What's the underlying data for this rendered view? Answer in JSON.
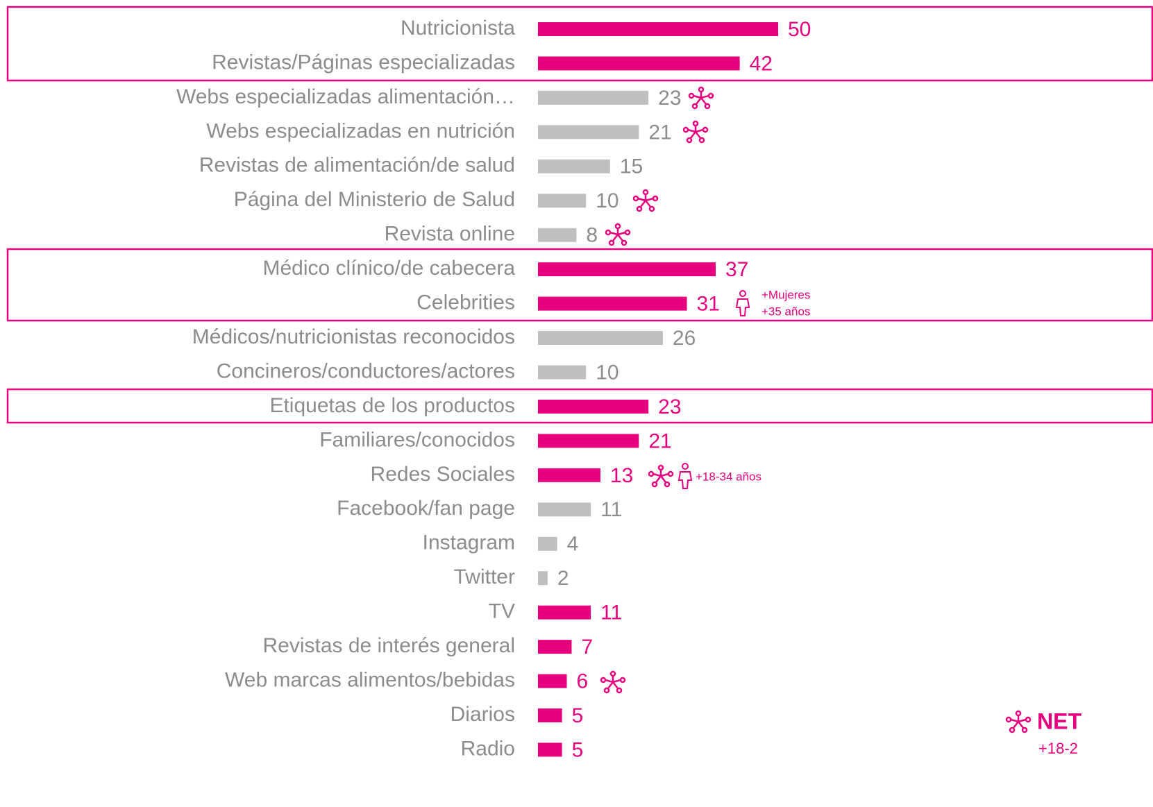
{
  "chart_data": {
    "type": "barh",
    "categories": [
      "Nutricionista",
      "Revistas/Páginas especializadas",
      "Webs especializadas alimentación…",
      "Webs especializadas en nutrición",
      "Revistas de alimentación/de salud",
      "Página del Ministerio de Salud",
      "Revista online",
      "Médico clínico/de cabecera",
      "Celebrities",
      "Médicos/nutricionistas reconocidos",
      "Concineros/conductores/actores",
      "Etiquetas de los productos",
      "Familiares/conocidos",
      "Redes Sociales",
      "Facebook/fan page",
      "Instagram",
      "Twitter",
      "TV",
      "Revistas de interés general",
      "Web marcas alimentos/bebidas",
      "Diarios",
      "Radio"
    ],
    "values": [
      50,
      42,
      23,
      21,
      15,
      10,
      8,
      37,
      31,
      26,
      10,
      23,
      21,
      13,
      11,
      4,
      2,
      11,
      7,
      6,
      5,
      5
    ],
    "colors": [
      "#e6007e",
      "#e6007e",
      "#bfbfbf",
      "#bfbfbf",
      "#bfbfbf",
      "#bfbfbf",
      "#bfbfbf",
      "#e6007e",
      "#e6007e",
      "#bfbfbf",
      "#bfbfbf",
      "#e6007e",
      "#e6007e",
      "#e6007e",
      "#bfbfbf",
      "#bfbfbf",
      "#bfbfbf",
      "#e6007e",
      "#e6007e",
      "#e6007e",
      "#e6007e",
      "#e6007e"
    ],
    "muted_color": "#bfbfbf",
    "label_color": "#8c8c8c",
    "annotations": [
      "+Mujeres",
      "+35 años",
      "+18-34 años",
      "NET",
      "+18-2"
    ]
  }
}
